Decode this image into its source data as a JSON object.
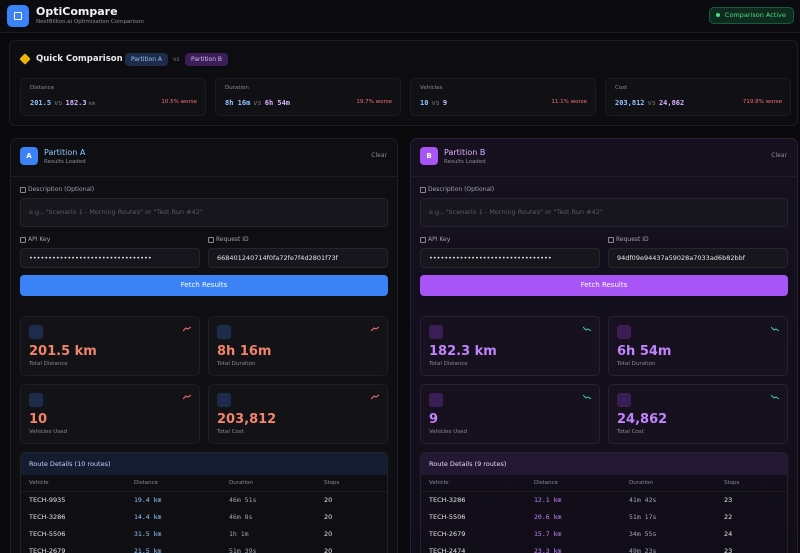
{
  "header": {
    "title": "OptiCompare",
    "subtitle": "NextBillion.ai Optimization Comparison",
    "badge": "Comparison Active"
  },
  "quick": {
    "title": "Quick Comparison",
    "chip_a": "Partition A",
    "vs": "vs",
    "chip_b": "Partition B",
    "metrics": [
      {
        "label": "Distance",
        "a": "201.5",
        "vs": "vs",
        "b": "182.3",
        "unit": "km",
        "change": "10.5% worse"
      },
      {
        "label": "Duration",
        "a": "8h 16m",
        "vs": "vs",
        "b": "6h 54m",
        "change": "19.7% worse"
      },
      {
        "label": "Vehicles",
        "a": "10",
        "vs": "vs",
        "b": "9",
        "change": "11.1% worse"
      },
      {
        "label": "Cost",
        "a": "203,812",
        "vs": "vs",
        "b": "24,862",
        "change": "719.8% worse"
      }
    ]
  },
  "panels": [
    {
      "badge": "A",
      "title": "Partition A",
      "status": "Results Loaded",
      "clear": "Clear",
      "description_label": "Description (Optional)",
      "description_placeholder": "e.g., \"Scenario 1 - Morning Routes\" or \"Test Run #42\"",
      "api_key_label": "API Key",
      "api_key": "••••••••••••••••••••••••••••••••",
      "request_id_label": "Request ID",
      "request_id": "668401240714f0fa72fe7f4d2801f73f",
      "button": "Fetch Results",
      "stats": [
        {
          "value": "201.5 km",
          "label": "Total Distance"
        },
        {
          "value": "8h 16m",
          "label": "Total Duration"
        },
        {
          "value": "10",
          "label": "Vehicles Used"
        },
        {
          "value": "203,812",
          "label": "Total Cost"
        }
      ],
      "routes": {
        "title": "Route Details (10 routes)",
        "columns": [
          "Vehicle",
          "Distance",
          "Duration",
          "Stops"
        ],
        "rows": [
          [
            "TECH-9935",
            "19.4 km",
            "46m 51s",
            "20"
          ],
          [
            "TECH-3286",
            "14.4 km",
            "46m 8s",
            "20"
          ],
          [
            "TECH-5506",
            "31.5 km",
            "1h 1m",
            "20"
          ],
          [
            "TECH-2679",
            "21.5 km",
            "51m 39s",
            "20"
          ]
        ]
      }
    },
    {
      "badge": "B",
      "title": "Partition B",
      "status": "Results Loaded",
      "clear": "Clear",
      "description_label": "Description (Optional)",
      "description_placeholder": "e.g., \"Scenario 1 - Morning Routes\" or \"Test Run #42\"",
      "api_key_label": "API Key",
      "api_key": "••••••••••••••••••••••••••••••••",
      "request_id_label": "Request ID",
      "request_id": "94df09e94437a59028a7033ad6b82bbf",
      "button": "Fetch Results",
      "stats": [
        {
          "value": "182.3 km",
          "label": "Total Distance"
        },
        {
          "value": "6h 54m",
          "label": "Total Duration"
        },
        {
          "value": "9",
          "label": "Vehicles Used"
        },
        {
          "value": "24,862",
          "label": "Total Cost"
        }
      ],
      "routes": {
        "title": "Route Details (9 routes)",
        "columns": [
          "Vehicle",
          "Distance",
          "Duration",
          "Stops"
        ],
        "rows": [
          [
            "TECH-3286",
            "12.1 km",
            "41m 42s",
            "23"
          ],
          [
            "TECH-5506",
            "20.6 km",
            "51m 17s",
            "22"
          ],
          [
            "TECH-2679",
            "15.7 km",
            "34m 55s",
            "24"
          ],
          [
            "TECH-2474",
            "23.3 km",
            "49m 23s",
            "23"
          ]
        ]
      }
    }
  ]
}
